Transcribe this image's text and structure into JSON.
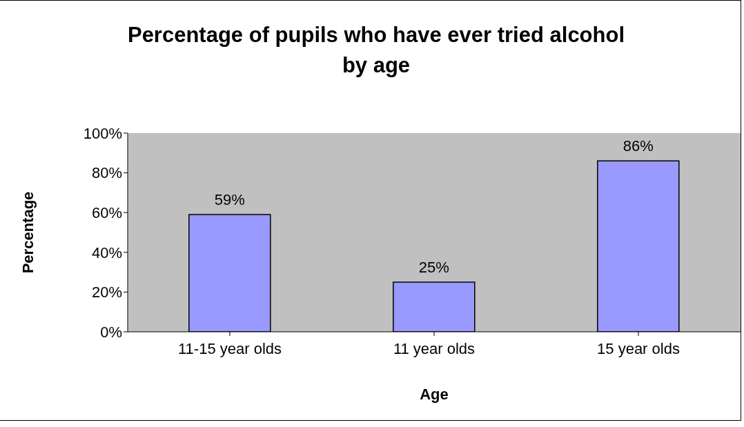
{
  "chart_data": {
    "type": "bar",
    "title": "Percentage of pupils who have ever tried alcohol by age",
    "xlabel": "Age",
    "ylabel": "Percentage",
    "categories": [
      "11-15 year olds",
      "11 year olds",
      "15 year olds"
    ],
    "values": [
      59,
      25,
      86
    ],
    "value_labels": [
      "59%",
      "25%",
      "86%"
    ],
    "color": "#9999ff",
    "ylim": [
      0,
      100
    ],
    "yticks": [
      {
        "value": 0,
        "label": "0%"
      },
      {
        "value": 20,
        "label": "20%"
      },
      {
        "value": 40,
        "label": "40%"
      },
      {
        "value": 60,
        "label": "60%"
      },
      {
        "value": 80,
        "label": "80%"
      },
      {
        "value": 100,
        "label": "100%"
      }
    ],
    "legend": false
  }
}
